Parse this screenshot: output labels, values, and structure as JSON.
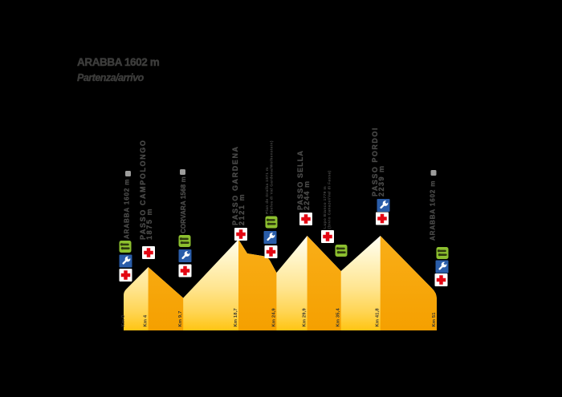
{
  "title": {
    "line1": "ARABBA 1602 m",
    "line2": "Partenza/arrivo"
  },
  "chart_data": {
    "type": "area",
    "title": "ARABBA 1602 m",
    "subtitle": "Partenza/arrivo",
    "xlabel": "Km",
    "ylabel": "",
    "x_km": [
      0,
      4,
      9.7,
      18.7,
      24.9,
      29.9,
      35.4,
      41.8,
      51
    ],
    "elevations_m": [
      1602,
      1875,
      1568,
      2121,
      1871,
      2244,
      1779,
      2239,
      1602
    ],
    "km_tick_labels": [
      "Km 0",
      "Km 4",
      "Km 9,7",
      "Km 18,7",
      "Km 24,9",
      "Km 29,9",
      "Km 35,4",
      "Km 41,8",
      "Km 51"
    ],
    "waypoints": [
      {
        "id": "arabba-start",
        "label_lines": [
          "ARABBA 1602 m"
        ],
        "size": "large",
        "marker": "square",
        "icons": [
          "feed",
          "assist",
          "medic"
        ]
      },
      {
        "id": "passo-campolongo",
        "label_lines": [
          "PASSO CAMPOLONGO",
          "1875 m"
        ],
        "size": "large",
        "marker": "",
        "icons": [
          "medic"
        ]
      },
      {
        "id": "corvara",
        "label_lines": [
          "CORVARA 1568 m"
        ],
        "size": "large",
        "marker": "square",
        "icons": [
          "feed",
          "assist",
          "medic"
        ]
      },
      {
        "id": "passo-gardena",
        "label_lines": [
          "PASSO GARDENA",
          "2121 m"
        ],
        "size": "large",
        "marker": "",
        "icons": [
          "medic"
        ]
      },
      {
        "id": "plan-de-gralba",
        "label_lines": [
          "Plan de Gralba 1871 m",
          "(Selva di Val Gardena/Wolkenstein)"
        ],
        "size": "small",
        "marker": "",
        "icons": [
          "feed",
          "assist",
          "medic"
        ]
      },
      {
        "id": "passo-sella",
        "label_lines": [
          "PASSO SELLA",
          "2244 m"
        ],
        "size": "large",
        "marker": "",
        "icons": [
          "medic"
        ]
      },
      {
        "id": "lupo-bianco",
        "label_lines": [
          "Lupo Bianco 1779 m",
          "(bivio Canazei/Val di Fassa)"
        ],
        "size": "small",
        "marker": "",
        "icons": [
          "medic",
          "feed"
        ]
      },
      {
        "id": "passo-pordoi",
        "label_lines": [
          "PASSO PORDOI",
          "2239 m"
        ],
        "size": "large",
        "marker": "",
        "icons": [
          "assist",
          "medic"
        ]
      },
      {
        "id": "arabba-finish",
        "label_lines": [
          "ARABBA 1602 m"
        ],
        "size": "large",
        "marker": "square",
        "icons": [
          "feed",
          "assist",
          "medic"
        ]
      }
    ],
    "colors": {
      "background": "#000000",
      "gradient_top": "#FFFEF5",
      "gradient_mid": "#FFE590",
      "gradient_bottom": "#FFC513",
      "orange_top": "#F9AE18",
      "orange_bottom": "#F5A000",
      "medic_red": "#E30613",
      "assist_blue": "#2A5DA9",
      "feed_green": "#8CBF2F",
      "feed_glyph": "#2F3A0E",
      "label_gray": "#4A4A49",
      "km_label": "#333331",
      "square_gray": "#9D9D9C",
      "title_color": "#3C3C3B"
    }
  }
}
